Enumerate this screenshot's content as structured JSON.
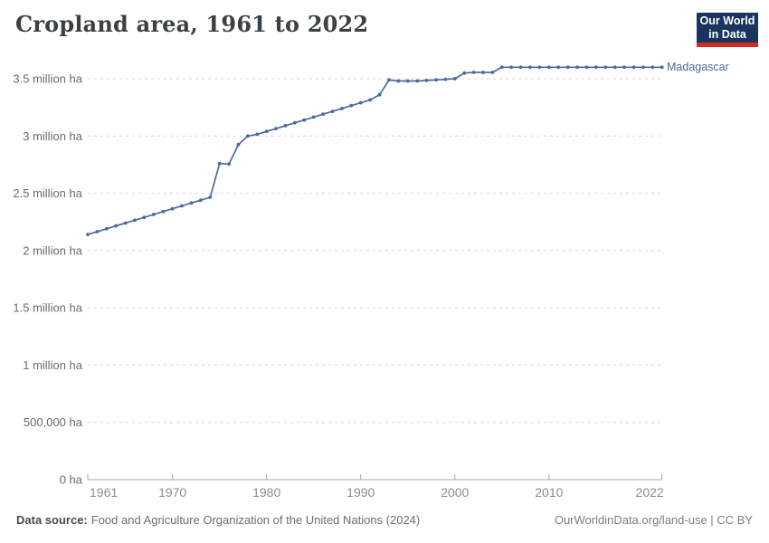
{
  "header": {
    "title": "Cropland area, 1961 to 2022",
    "logo": {
      "line1": "Our World",
      "line2": "in Data"
    }
  },
  "footer": {
    "source_label": "Data source:",
    "source_text": "Food and Agriculture Organization of the United Nations (2024)",
    "link_text": "OurWorldinData.org/land-use | CC BY"
  },
  "colors": {
    "line": "#4c6a9c",
    "series_label": "#4c6a9c",
    "grid": "#d6d6d6",
    "axis": "#a5a5a5",
    "y_tick_text": "#6b6b6b",
    "x_tick_text": "#8c8c8c",
    "title_text": "#3b4045",
    "logo_bg": "#18365d",
    "logo_red": "#d42b21"
  },
  "chart_data": {
    "type": "line",
    "title": "Cropland area, 1961 to 2022",
    "unit": "ha",
    "grid": "horizontal-dashed",
    "legend_position": "end-of-line-label",
    "xlim": [
      1961,
      2022
    ],
    "ylim": [
      0,
      3500000
    ],
    "x_ticks": [
      {
        "value": 1961,
        "label": "1961"
      },
      {
        "value": 1970,
        "label": "1970"
      },
      {
        "value": 1980,
        "label": "1980"
      },
      {
        "value": 1990,
        "label": "1990"
      },
      {
        "value": 2000,
        "label": "2000"
      },
      {
        "value": 2010,
        "label": "2010"
      },
      {
        "value": 2022,
        "label": "2022"
      }
    ],
    "y_ticks": [
      {
        "value": 0,
        "label": "0 ha"
      },
      {
        "value": 500000,
        "label": "500,000 ha"
      },
      {
        "value": 1000000,
        "label": "1 million ha"
      },
      {
        "value": 1500000,
        "label": "1.5 million ha"
      },
      {
        "value": 2000000,
        "label": "2 million ha"
      },
      {
        "value": 2500000,
        "label": "2.5 million ha"
      },
      {
        "value": 3000000,
        "label": "3 million ha"
      },
      {
        "value": 3500000,
        "label": "3.5 million ha"
      }
    ],
    "x": [
      1961,
      1962,
      1963,
      1964,
      1965,
      1966,
      1967,
      1968,
      1969,
      1970,
      1971,
      1972,
      1973,
      1974,
      1975,
      1976,
      1977,
      1978,
      1979,
      1980,
      1981,
      1982,
      1983,
      1984,
      1985,
      1986,
      1987,
      1988,
      1989,
      1990,
      1991,
      1992,
      1993,
      1994,
      1995,
      1996,
      1997,
      1998,
      1999,
      2000,
      2001,
      2002,
      2003,
      2004,
      2005,
      2006,
      2007,
      2008,
      2009,
      2010,
      2011,
      2012,
      2013,
      2014,
      2015,
      2016,
      2017,
      2018,
      2019,
      2020,
      2021,
      2022
    ],
    "series": [
      {
        "name": "Madagascar",
        "values": [
          2140000,
          2165000,
          2190000,
          2215000,
          2240000,
          2265000,
          2290000,
          2315000,
          2340000,
          2365000,
          2390000,
          2415000,
          2440000,
          2465000,
          2760000,
          2755000,
          2925000,
          3000000,
          3015000,
          3040000,
          3065000,
          3090000,
          3115000,
          3140000,
          3165000,
          3190000,
          3215000,
          3240000,
          3265000,
          3290000,
          3315000,
          3360000,
          3490000,
          3480000,
          3480000,
          3480000,
          3485000,
          3490000,
          3495000,
          3500000,
          3550000,
          3555000,
          3555000,
          3555000,
          3600000,
          3600000,
          3600000,
          3600000,
          3600000,
          3600000,
          3600000,
          3600000,
          3600000,
          3600000,
          3600000,
          3600000,
          3600000,
          3600000,
          3600000,
          3600000,
          3600000,
          3600000
        ]
      }
    ]
  }
}
